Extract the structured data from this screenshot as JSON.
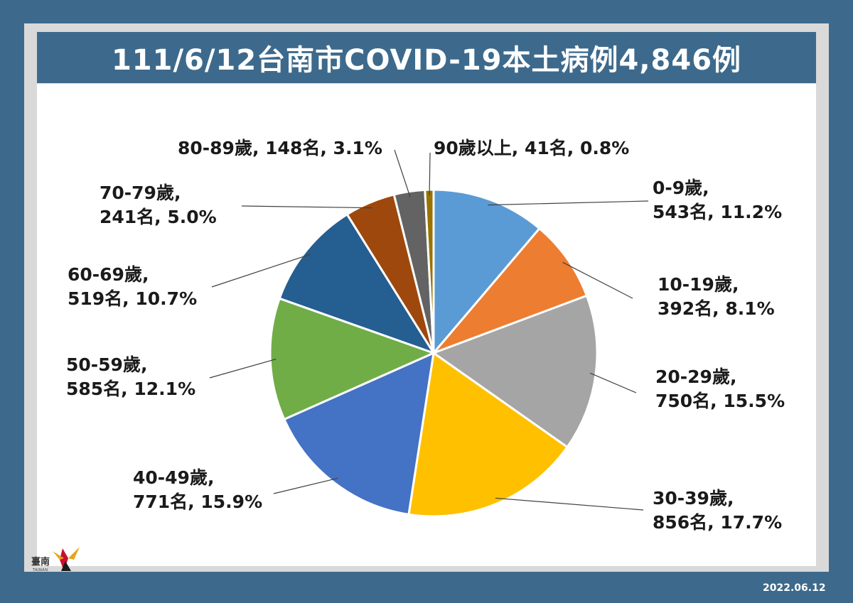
{
  "header": {
    "title": "111/6/12台南市COVID-19本土病例4,846例"
  },
  "footer": {
    "date": "2022.06.12"
  },
  "logo": {
    "text": "臺南",
    "subtext": "TAINAN"
  },
  "colors": {
    "background": "#3d6a8c",
    "frame": "#d9d9d9",
    "panel": "#ffffff"
  },
  "chart_data": {
    "type": "pie",
    "title": "111/6/12台南市COVID-19本土病例4,846例",
    "total": 4846,
    "slices": [
      {
        "age": "0-9歲",
        "count": 543,
        "percent": 11.2,
        "color": "#5b9bd5",
        "line1": "0-9歲,",
        "line2": "543名, 11.2%"
      },
      {
        "age": "10-19歲",
        "count": 392,
        "percent": 8.1,
        "color": "#ed7d31",
        "line1": "10-19歲,",
        "line2": "392名, 8.1%"
      },
      {
        "age": "20-29歲",
        "count": 750,
        "percent": 15.5,
        "color": "#a5a5a5",
        "line1": "20-29歲,",
        "line2": "750名, 15.5%"
      },
      {
        "age": "30-39歲",
        "count": 856,
        "percent": 17.7,
        "color": "#ffc000",
        "line1": "30-39歲,",
        "line2": "856名, 17.7%"
      },
      {
        "age": "40-49歲",
        "count": 771,
        "percent": 15.9,
        "color": "#4472c4",
        "line1": "40-49歲,",
        "line2": "771名, 15.9%"
      },
      {
        "age": "50-59歲",
        "count": 585,
        "percent": 12.1,
        "color": "#70ad47",
        "line1": "50-59歲,",
        "line2": "585名, 12.1%"
      },
      {
        "age": "60-69歲",
        "count": 519,
        "percent": 10.7,
        "color": "#255e91",
        "line1": "60-69歲,",
        "line2": "519名, 10.7%"
      },
      {
        "age": "70-79歲",
        "count": 241,
        "percent": 5.0,
        "color": "#9e480e",
        "line1": "70-79歲,",
        "line2": "241名, 5.0%"
      },
      {
        "age": "80-89歲",
        "count": 148,
        "percent": 3.1,
        "color": "#636363",
        "line1": "80-89歲, 148名, 3.1%",
        "line2": ""
      },
      {
        "age": "90歲以上",
        "count": 41,
        "percent": 0.8,
        "color": "#997300",
        "line1": "90歲以上, 41名, 0.8%",
        "line2": ""
      }
    ]
  }
}
